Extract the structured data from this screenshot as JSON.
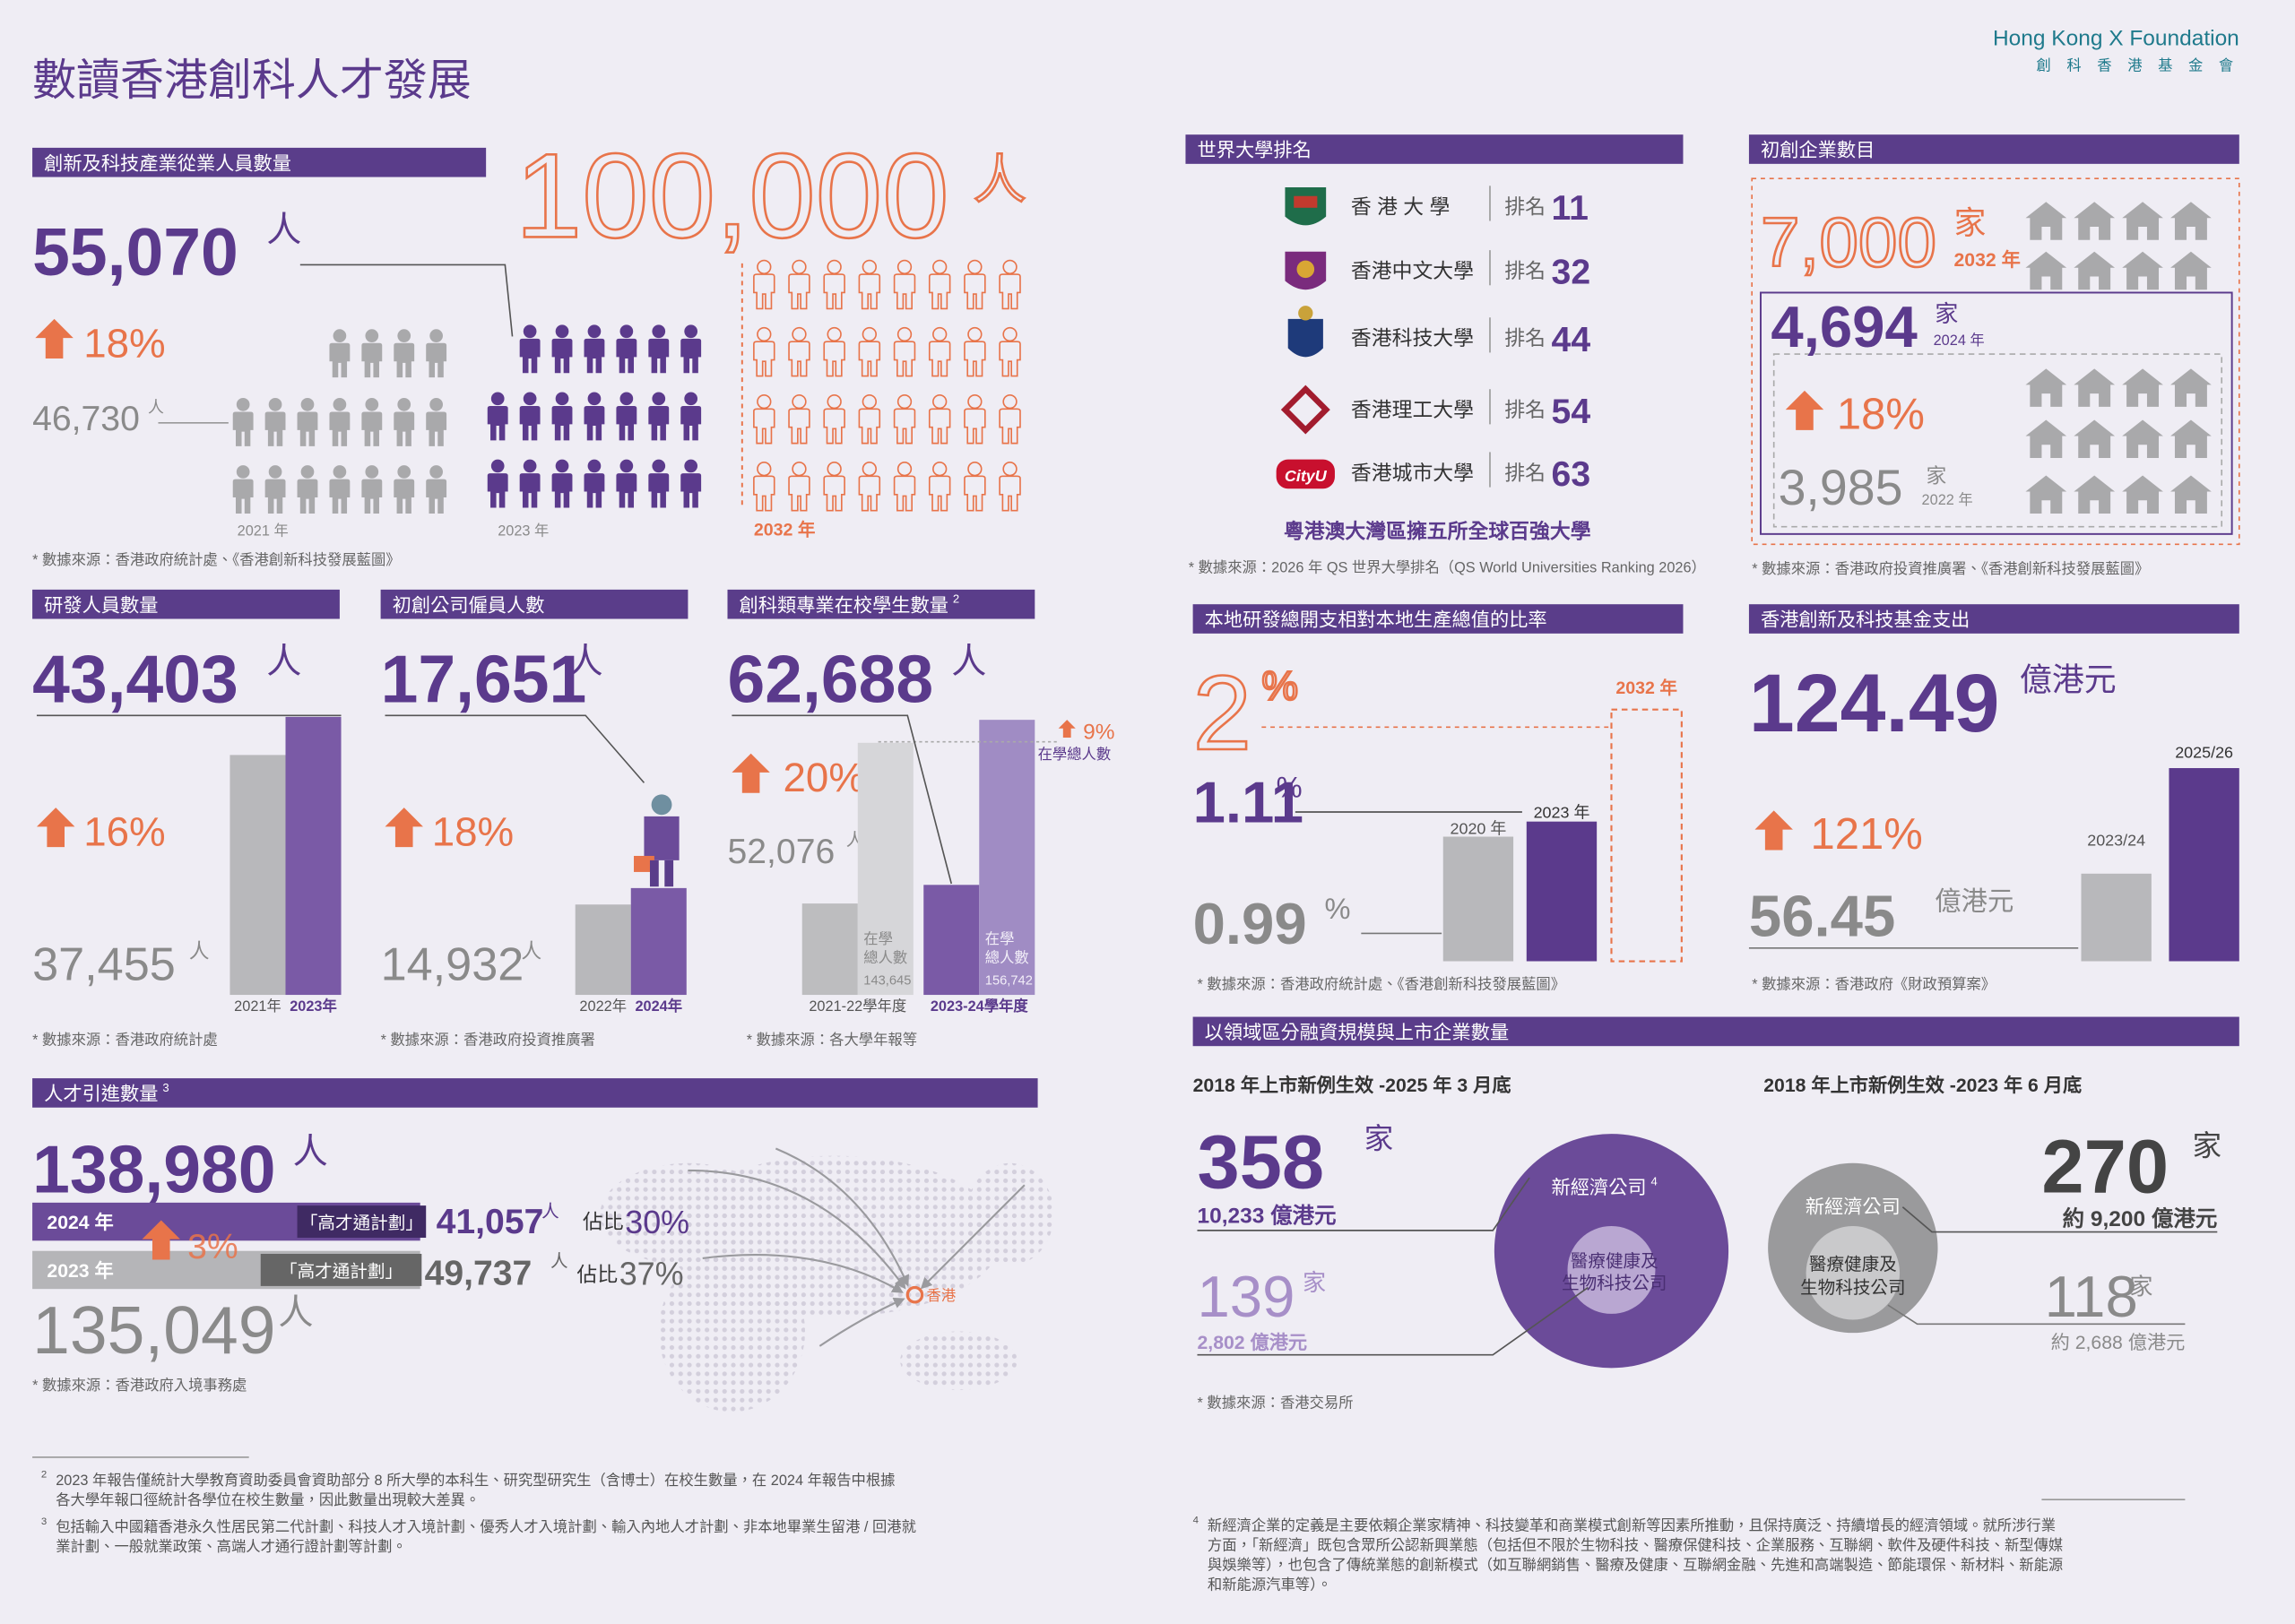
{
  "header": {
    "title": "數讀香港創科人才發展",
    "brand_en": "Hong Kong X Foundation",
    "brand_zh": "創 科 香 港 基 金 會"
  },
  "workforce": {
    "heading": "創新及科技產業從業人員數量",
    "value": "55,070",
    "unit": "人",
    "growth": "18%",
    "prev": "46,730",
    "prev_unit": "人",
    "year_prev": "2021 年",
    "year_now": "2023 年",
    "target": "100,000",
    "target_unit": "人",
    "target_year": "2032 年",
    "source": "* 數據來源：香港政府統計處、《香港創新科技發展藍圖》"
  },
  "rankings": {
    "heading": "世界大學排名",
    "items": [
      {
        "name": "香 港 大 學",
        "rank_label": "排名",
        "rank": "11"
      },
      {
        "name": "香港中文大學",
        "rank_label": "排名",
        "rank": "32"
      },
      {
        "name": "香港科技大學",
        "rank_label": "排名",
        "rank": "44"
      },
      {
        "name": "香港理工大學",
        "rank_label": "排名",
        "rank": "54"
      },
      {
        "name": "香港城市大學",
        "rank_label": "排名",
        "rank": "63"
      }
    ],
    "caption": "粵港澳大灣區擁五所全球百強大學",
    "source": "* 數據來源：2026 年 QS 世界大學排名（QS World Universities Ranking 2026）"
  },
  "startups": {
    "heading": "初創企業數目",
    "target": "7,000",
    "target_unit": "家",
    "target_year": "2032 年",
    "value": "4,694",
    "unit": "家",
    "year": "2024 年",
    "growth": "18%",
    "prev": "3,985",
    "prev_unit": "家",
    "prev_year": "2022 年",
    "source": "* 數據來源：香港政府投資推廣署、《香港創新科技發展藍圖》"
  },
  "rnd_staff": {
    "heading": "研發人員數量",
    "value": "43,403",
    "unit": "人",
    "growth": "16%",
    "prev": "37,455",
    "prev_unit": "人",
    "year_prev": "2021年",
    "year_now": "2023年",
    "source": "* 數據來源：香港政府統計處"
  },
  "startup_staff": {
    "heading": "初創公司僱員人數",
    "value": "17,651",
    "unit": "人",
    "growth": "18%",
    "prev": "14,932",
    "prev_unit": "人",
    "year_prev": "2022年",
    "year_now": "2024年",
    "source": "* 數據來源：香港政府投資推廣署"
  },
  "students": {
    "heading": "創科類專業在校學生數量",
    "heading_note": "2",
    "value": "62,688",
    "unit": "人",
    "growth": "20%",
    "prev": "52,076",
    "prev_unit": "人",
    "total_growth": "9%",
    "total_label": "在學總人數",
    "bar_label": [
      "在學",
      "總人數"
    ],
    "total_prev": "143,645",
    "total_now": "156,742",
    "year_prev": "2021-22學年度",
    "year_now": "2023-24學年度",
    "source": "* 數據來源：各大學年報等"
  },
  "rd_ratio": {
    "heading": "本地研發總開支相對本地生產總值的比率",
    "target": "2",
    "target_unit": "%",
    "target_year": "2032 年",
    "value": "1.11",
    "unit": "%",
    "prev": "0.99",
    "prev_unit": "%",
    "year_prev": "2020 年",
    "year_now": "2023 年",
    "source": "* 數據來源：香港政府統計處、《香港創新科技發展藍圖》"
  },
  "fund": {
    "heading": "香港創新及科技基金支出",
    "value": "124.49",
    "unit": "億港元",
    "growth": "121%",
    "prev": "56.45",
    "prev_unit": "億港元",
    "year_prev": "2023/24",
    "year_now": "2025/26",
    "source": "* 數據來源：香港政府《財政預算案》"
  },
  "talent": {
    "heading": "人才引進數量",
    "heading_note": "3",
    "value": "138,980",
    "unit": "人",
    "growth": "3%",
    "prev": "135,049",
    "prev_unit": "人",
    "rows": [
      {
        "year": "2024 年",
        "scheme": "「高才通計劃」",
        "count": "41,057",
        "unit": "人",
        "share_label": "佔比",
        "share": "30%"
      },
      {
        "year": "2023 年",
        "scheme": "「高才通計劃」",
        "count": "49,737",
        "unit": "人",
        "share_label": "佔比",
        "share": "37%"
      }
    ],
    "hk_label": "香港",
    "source": "* 數據來源：香港政府入境事務處"
  },
  "listing": {
    "heading": "以領域區分融資規模與上市企業數量",
    "left": {
      "period": "2018 年上市新例生效 -2025 年 3 月底",
      "total": "358",
      "total_unit": "家",
      "total_cap": "10,233 億港元",
      "new_econ": "新經濟公司",
      "new_econ_note": "4",
      "health": [
        "醫療健康及",
        "生物科技公司"
      ],
      "health_count": "139",
      "health_unit": "家",
      "health_cap": "2,802 億港元"
    },
    "right": {
      "period": "2018 年上市新例生效 -2023 年 6 月底",
      "total": "270",
      "total_unit": "家",
      "total_cap": "約 9,200 億港元",
      "new_econ": "新經濟公司",
      "health": [
        "醫療健康及",
        "生物科技公司"
      ],
      "health_count": "118",
      "health_unit": "家",
      "health_cap": "約 2,688 億港元"
    },
    "source": "* 數據來源：香港交易所"
  },
  "footnotes": [
    {
      "num": "2",
      "lines": [
        "2023 年報告僅統計大學教育資助委員會資助部分 8 所大學的本科生、研究型研究生（含博士）在校生數量，在 2024 年報告中根據",
        "各大學年報口徑統計各學位在校生數量，因此數量出現較大差異。"
      ]
    },
    {
      "num": "3",
      "lines": [
        "包括輸入中國籍香港永久性居民第二代計劃、科技人才入境計劃、優秀人才入境計劃、輸入內地人才計劃、非本地畢業生留港 / 回港就",
        "業計劃、一般就業政策、高端人才通行證計劃等計劃。"
      ]
    },
    {
      "num": "4",
      "lines": [
        "新經濟企業的定義是主要依賴企業家精神、科技變革和商業模式創新等因素所推動，且保持廣泛、持續增長的經濟領域。就所涉行業",
        "方面，「新經濟」既包含眾所公認新興業態（包括但不限於生物科技、醫療保健科技、企業服務、互聯網、軟件及硬件科技、新型傳媒",
        "與娛樂等），也包含了傳統業態的創新模式（如互聯網銷售、醫療及健康、互聯網金融、先進和高端製造、節能環保、新材料、新能源",
        "和新能源汽車等）。"
      ]
    }
  ]
}
